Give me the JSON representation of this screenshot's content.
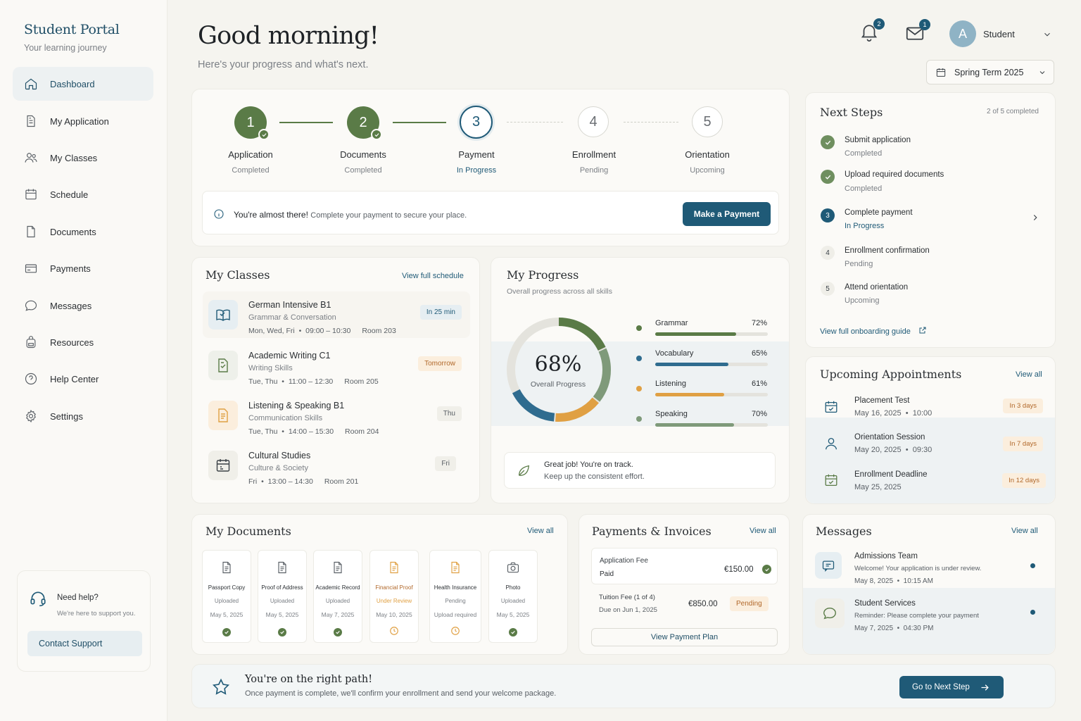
{
  "sidebar": {
    "brand": "Student Portal",
    "brand_sub": "Your learning journey",
    "items": [
      {
        "label": "Dashboard"
      },
      {
        "label": "My Application"
      },
      {
        "label": "My Classes"
      },
      {
        "label": "Schedule"
      },
      {
        "label": "Documents"
      },
      {
        "label": "Payments"
      },
      {
        "label": "Messages"
      },
      {
        "label": "Resources"
      },
      {
        "label": "Help Center"
      },
      {
        "label": "Settings"
      }
    ],
    "help": {
      "title": "Need help?",
      "subtitle": "We're here to support you.",
      "button": "Contact Support"
    }
  },
  "header": {
    "greeting": "Good morning!",
    "subtitle": "Here's your progress and what's next.",
    "notifications_count": "2",
    "mail_count": "1",
    "avatar_letter": "A",
    "user_name": "Student",
    "term": "Spring Term 2025"
  },
  "steps": {
    "items": [
      {
        "num": "1",
        "title": "Application",
        "status": "Completed"
      },
      {
        "num": "2",
        "title": "Documents",
        "status": "Completed"
      },
      {
        "num": "3",
        "title": "Payment",
        "status": "In Progress"
      },
      {
        "num": "4",
        "title": "Enrollment",
        "status": "Pending"
      },
      {
        "num": "5",
        "title": "Orientation",
        "status": "Upcoming"
      }
    ],
    "banner_bold": "You're almost there!",
    "banner_text": "Complete your payment to secure your place.",
    "banner_button": "Make a Payment"
  },
  "next_steps": {
    "title": "Next Steps",
    "count": "2 of 5 completed",
    "items": [
      {
        "num": "",
        "title": "Submit application",
        "status": "Completed"
      },
      {
        "num": "",
        "title": "Upload required documents",
        "status": "Completed"
      },
      {
        "num": "3",
        "title": "Complete payment",
        "status": "In Progress"
      },
      {
        "num": "4",
        "title": "Enrollment confirmation",
        "status": "Pending"
      },
      {
        "num": "5",
        "title": "Attend orientation",
        "status": "Upcoming"
      }
    ],
    "guide_link": "View full onboarding guide"
  },
  "classes": {
    "title": "My Classes",
    "link": "View full schedule",
    "items": [
      {
        "name": "German Intensive B1",
        "sub": "Grammar & Conversation",
        "days": "Mon, Wed, Fri",
        "time": "09:00 – 10:30",
        "room": "Room 203",
        "badge": "In 25 min"
      },
      {
        "name": "Academic Writing C1",
        "sub": "Writing Skills",
        "days": "Tue, Thu",
        "time": "11:00 – 12:30",
        "room": "Room 205",
        "badge": "Tomorrow"
      },
      {
        "name": "Listening & Speaking B1",
        "sub": "Communication Skills",
        "days": "Tue, Thu",
        "time": "14:00 – 15:30",
        "room": "Room 204",
        "badge": "Thu"
      },
      {
        "name": "Cultural Studies",
        "sub": "Culture & Society",
        "days": "Fri",
        "time": "13:00 – 14:30",
        "room": "Room 201",
        "badge": "Fri"
      }
    ]
  },
  "progress": {
    "title": "My Progress",
    "subtitle": "Overall progress across all skills",
    "overall": "68%",
    "overall_value": 68,
    "overall_label": "Overall Progress",
    "skills": [
      {
        "name": "Grammar",
        "value": 72,
        "label": "72%",
        "color": "#5a7b47"
      },
      {
        "name": "Vocabulary",
        "value": 65,
        "label": "65%",
        "color": "#2f6c8f"
      },
      {
        "name": "Listening",
        "value": 61,
        "label": "61%",
        "color": "#e0a043"
      },
      {
        "name": "Speaking",
        "value": 70,
        "label": "70%",
        "color": "#7f9a7a"
      }
    ],
    "note_line1": "Great job! You're on track.",
    "note_line2": "Keep up the consistent effort."
  },
  "appointments": {
    "title": "Upcoming Appointments",
    "link": "View all",
    "items": [
      {
        "title": "Placement Test",
        "date": "May 16, 2025",
        "time": "10:00",
        "badge": "In 3 days"
      },
      {
        "title": "Orientation Session",
        "date": "May 20, 2025",
        "time": "09:30",
        "badge": "In 7 days"
      },
      {
        "title": "Enrollment Deadline",
        "date": "May 25, 2025",
        "time": "",
        "badge": "In 12 days"
      }
    ]
  },
  "documents": {
    "title": "My Documents",
    "link": "View all",
    "items": [
      {
        "name": "Passport Copy",
        "status": "Uploaded",
        "date": "May 5, 2025"
      },
      {
        "name": "Proof of Address",
        "status": "Uploaded",
        "date": "May 5, 2025"
      },
      {
        "name": "Academic Record",
        "status": "Uploaded",
        "date": "May 7, 2025"
      },
      {
        "name": "Financial Proof",
        "status": "Under Review",
        "date": "May 10, 2025"
      },
      {
        "name": "Health Insurance",
        "status": "Pending",
        "date": "Upload required"
      },
      {
        "name": "Photo",
        "status": "Uploaded",
        "date": "May 5, 2025"
      }
    ]
  },
  "payments": {
    "title": "Payments & Invoices",
    "link": "View all",
    "items": [
      {
        "name": "Application Fee",
        "sub": "Paid",
        "amount": "€150.00"
      },
      {
        "name": "Tuition Fee (1 of 4)",
        "sub": "Due on Jun 1, 2025",
        "amount": "€850.00",
        "badge": "Pending"
      }
    ],
    "button": "View Payment Plan"
  },
  "messages": {
    "title": "Messages",
    "link": "View all",
    "items": [
      {
        "from": "Admissions Team",
        "text": "Welcome! Your application is under review.",
        "date": "May 8, 2025",
        "time": "10:15 AM"
      },
      {
        "from": "Student Services",
        "text": "Reminder: Please complete your payment",
        "date": "May 7, 2025",
        "time": "04:30 PM"
      }
    ]
  },
  "footer": {
    "title": "You're on the right path!",
    "text": "Once payment is complete, we'll confirm your enrollment and send your welcome package.",
    "button": "Go to Next Step"
  }
}
